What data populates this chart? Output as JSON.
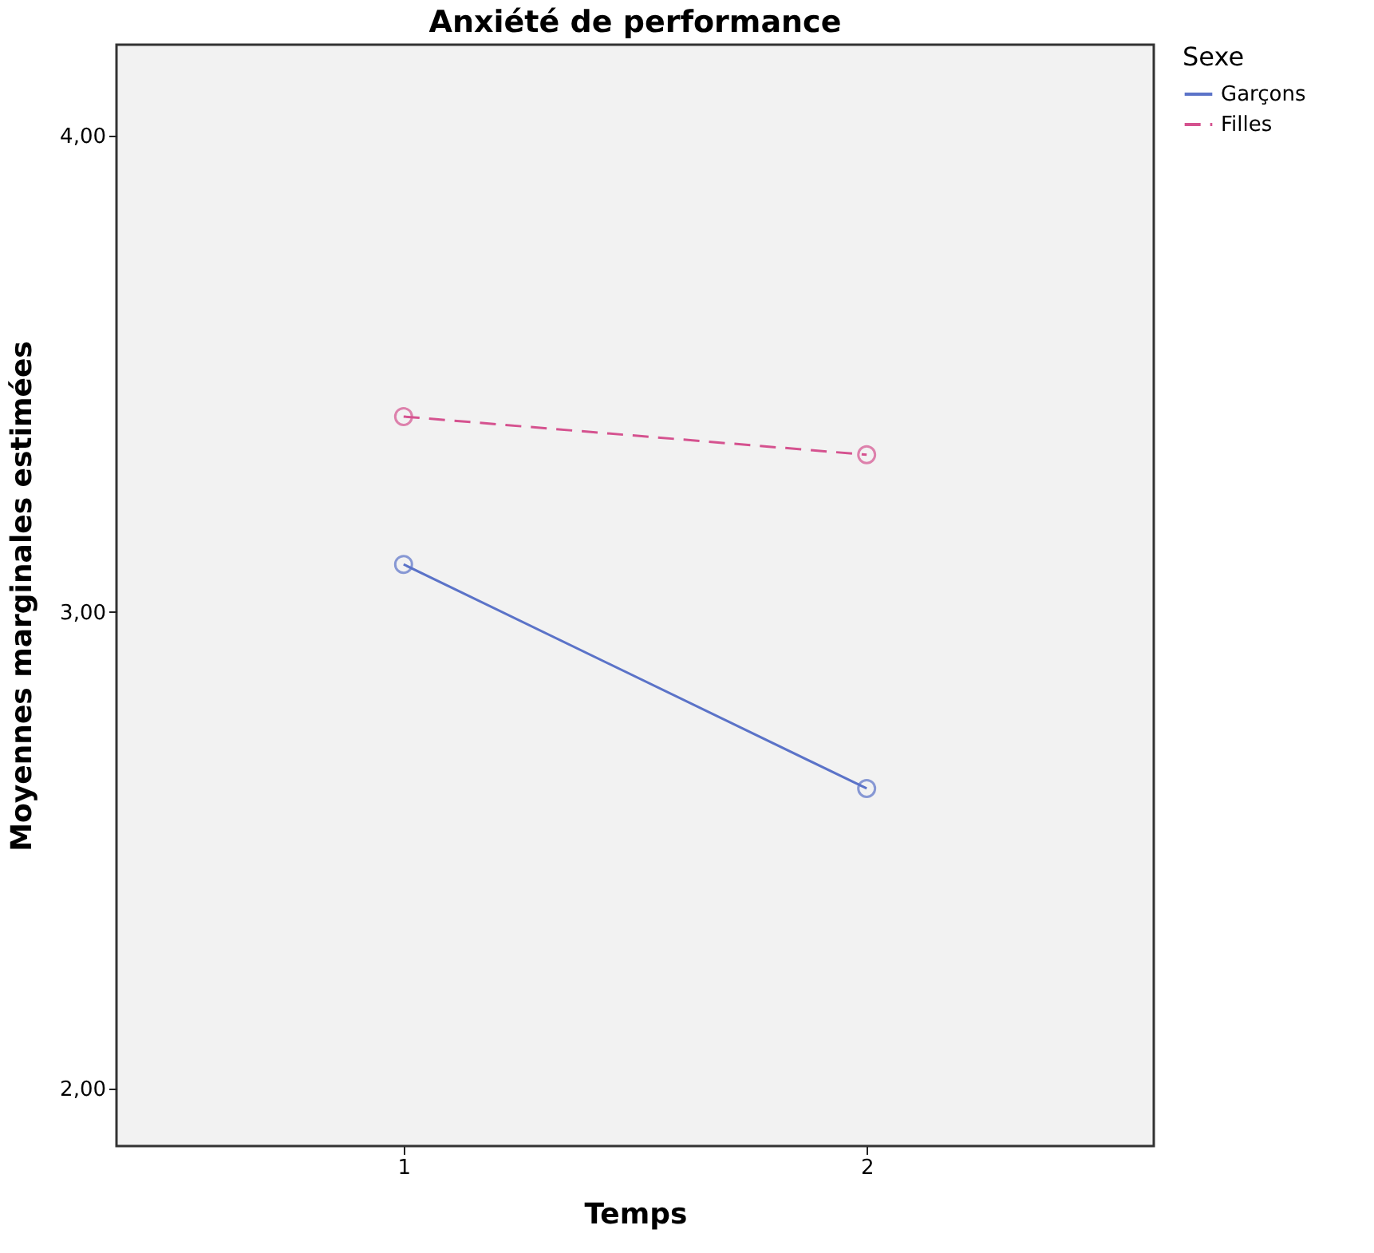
{
  "chart_data": {
    "type": "line",
    "title": "Anxiété de performance",
    "xlabel": "Temps",
    "ylabel": "Moyennes marginales estimées",
    "legend_title": "Sexe",
    "categories": [
      "1",
      "2"
    ],
    "series": [
      {
        "name": "Garçons",
        "color": "#5b73c8",
        "values": [
          3.1,
          2.63
        ],
        "line_style": "solid"
      },
      {
        "name": "Filles",
        "color": "#d5528f",
        "values": [
          3.41,
          3.33
        ],
        "line_style": "dashed"
      }
    ],
    "ylim": [
      1.88,
      4.19
    ],
    "yticks": [
      {
        "value": 2,
        "label": "2,00"
      },
      {
        "value": 3,
        "label": "3,00"
      },
      {
        "value": 4,
        "label": "4,00"
      }
    ],
    "grid": false,
    "legend": "top right",
    "marker": "circle"
  }
}
